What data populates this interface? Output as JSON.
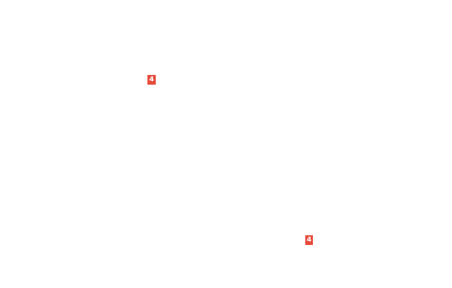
{
  "page": {
    "background_color": "#ffffff"
  },
  "badges": [
    {
      "label": "4",
      "color": "#e74c3c",
      "text_color": "#ffffff"
    },
    {
      "label": "4",
      "color": "#e74c3c",
      "text_color": "#ffffff"
    }
  ]
}
